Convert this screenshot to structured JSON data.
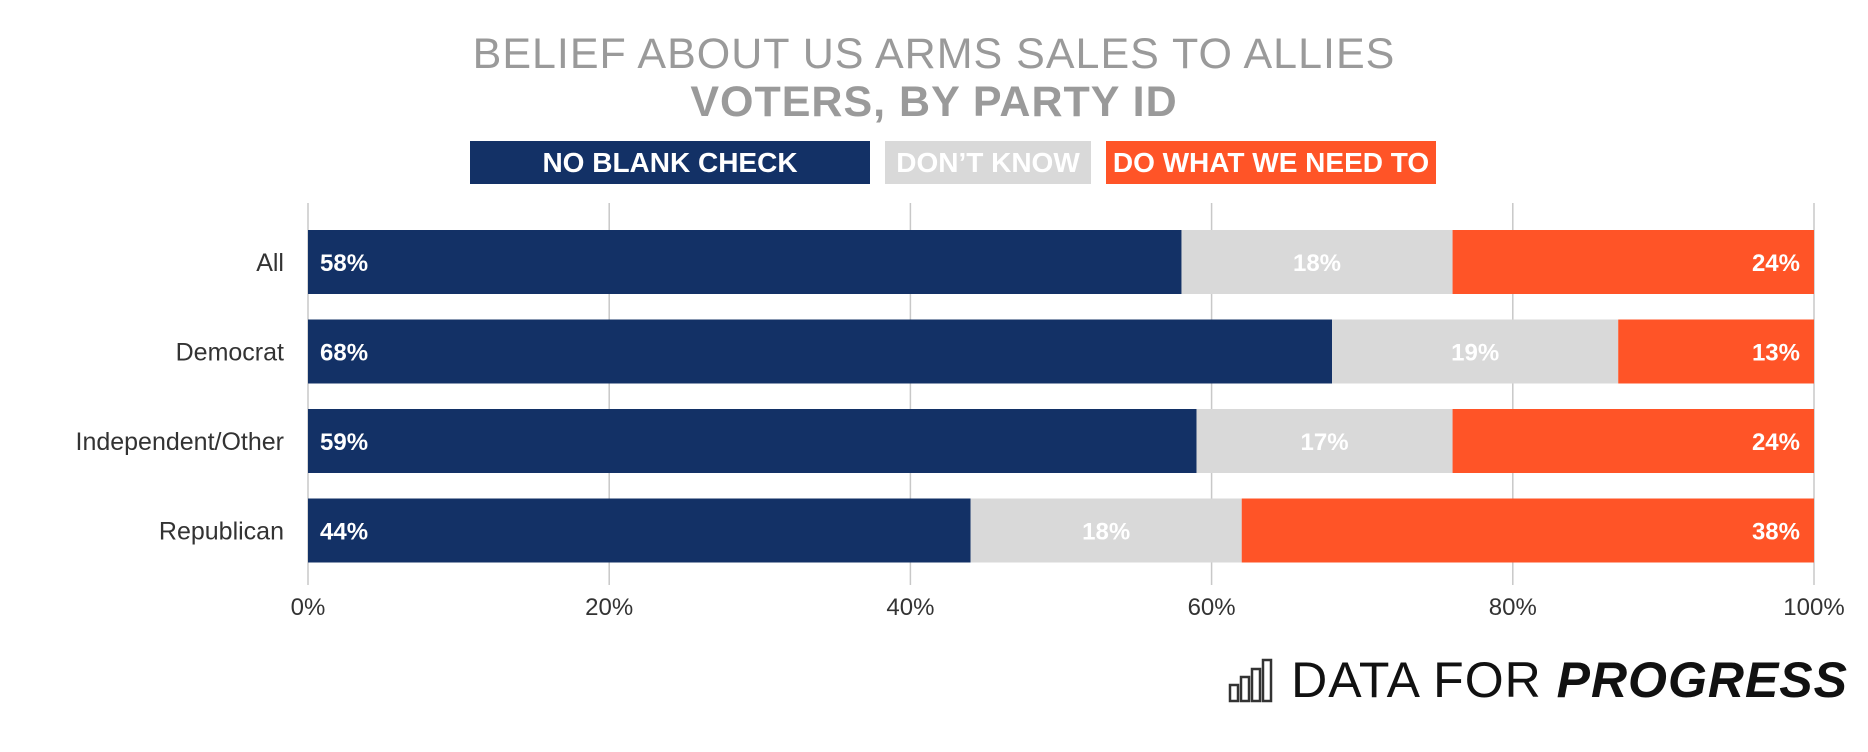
{
  "chart_data": {
    "type": "bar",
    "orientation": "horizontal",
    "stacked": true,
    "title": "BELIEF ABOUT US ARMS SALES TO ALLIES",
    "subtitle": "VOTERS, BY PARTY ID",
    "categories": [
      "All",
      "Democrat",
      "Independent/Other",
      "Republican"
    ],
    "series": [
      {
        "name": "NO BLANK CHECK",
        "color": "#133166",
        "values": [
          58,
          68,
          59,
          44
        ],
        "labels": [
          "58%",
          "68%",
          "59%",
          "44%"
        ]
      },
      {
        "name": "DON’T KNOW",
        "color": "#d9d9d9",
        "values": [
          18,
          19,
          17,
          18
        ],
        "labels": [
          "18%",
          "19%",
          "17%",
          "18%"
        ]
      },
      {
        "name": "DO WHAT WE NEED TO",
        "color": "#ff5427",
        "values": [
          24,
          13,
          24,
          38
        ],
        "labels": [
          "24%",
          "13%",
          "24%",
          "38%"
        ]
      }
    ],
    "xlim": [
      0,
      100
    ],
    "xticks": [
      0,
      20,
      40,
      60,
      80,
      100
    ],
    "xtick_labels": [
      "0%",
      "20%",
      "40%",
      "60%",
      "80%",
      "100%"
    ],
    "grid": true,
    "legend": "top"
  },
  "brand": {
    "text_regular": "DATA FOR ",
    "text_bold": "PROGRESS",
    "icon": "bar-chart-icon"
  }
}
